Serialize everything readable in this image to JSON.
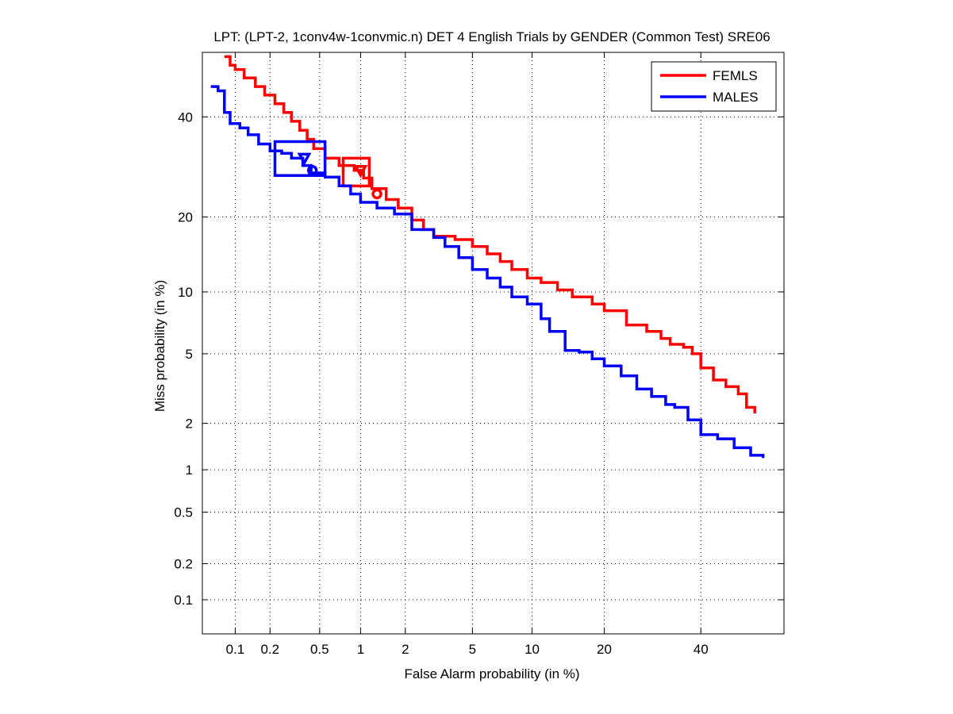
{
  "chart_data": {
    "type": "line",
    "title": "LPT: (LPT-2, 1conv4w-1convmic.n) DET 4 English Trials by GENDER (Common Test) SRE06",
    "xlabel": "False Alarm probability (in %)",
    "ylabel": "Miss probability (in %)",
    "x_scale": "normal-deviate (probit)",
    "y_scale": "normal-deviate (probit)",
    "xlim": [
      0.05,
      60
    ],
    "ylim": [
      0.05,
      55
    ],
    "x_ticks": [
      0.1,
      0.2,
      0.5,
      1,
      2,
      5,
      10,
      20,
      40
    ],
    "x_tick_labels": [
      "0.1",
      "0.2",
      "0.5",
      "1",
      "2",
      "5",
      "10",
      "20",
      "40"
    ],
    "y_ticks": [
      0.1,
      0.2,
      0.5,
      1,
      2,
      5,
      10,
      20,
      40
    ],
    "y_tick_labels": [
      "0.1",
      "0.2",
      "0.5",
      "1",
      "2",
      "5",
      "10",
      "20",
      "40"
    ],
    "grid": true,
    "legend_position": "top-right",
    "series": [
      {
        "name": "FEMLS",
        "color": "#ff0000",
        "points": [
          [
            0.08,
            54
          ],
          [
            0.09,
            52
          ],
          [
            0.1,
            51
          ],
          [
            0.12,
            49
          ],
          [
            0.15,
            47
          ],
          [
            0.18,
            45
          ],
          [
            0.22,
            43
          ],
          [
            0.26,
            41
          ],
          [
            0.3,
            39
          ],
          [
            0.35,
            37
          ],
          [
            0.4,
            35
          ],
          [
            0.45,
            33
          ],
          [
            0.55,
            31
          ],
          [
            0.7,
            29.5
          ],
          [
            0.9,
            28.5
          ],
          [
            1.05,
            27
          ],
          [
            1.2,
            25
          ],
          [
            1.5,
            23
          ],
          [
            1.8,
            21.5
          ],
          [
            2.2,
            19.5
          ],
          [
            2.6,
            18
          ],
          [
            3,
            17
          ],
          [
            4,
            16.5
          ],
          [
            5,
            15.5
          ],
          [
            6,
            14.5
          ],
          [
            7,
            13.5
          ],
          [
            8,
            12.5
          ],
          [
            9.5,
            11.5
          ],
          [
            11,
            11
          ],
          [
            13,
            10.2
          ],
          [
            15,
            9.5
          ],
          [
            18,
            8.8
          ],
          [
            20,
            8.2
          ],
          [
            24,
            7
          ],
          [
            28,
            6.5
          ],
          [
            31,
            6
          ],
          [
            33,
            5.6
          ],
          [
            36,
            5.4
          ],
          [
            38,
            5
          ],
          [
            40,
            4.2
          ],
          [
            43,
            3.6
          ],
          [
            46,
            3.3
          ],
          [
            49,
            3
          ],
          [
            51,
            2.5
          ],
          [
            53,
            2.3
          ]
        ],
        "confidence_box": {
          "x": [
            0.75,
            1.15
          ],
          "y": [
            25.5,
            31
          ]
        },
        "min_dcf_point": [
          1.0,
          28.5
        ],
        "actual_dcf_point": [
          1.3,
          24
        ]
      },
      {
        "name": "MALES",
        "color": "#0000ff",
        "points": [
          [
            0.06,
            47
          ],
          [
            0.07,
            46
          ],
          [
            0.08,
            41
          ],
          [
            0.09,
            38.5
          ],
          [
            0.11,
            37.5
          ],
          [
            0.13,
            36
          ],
          [
            0.16,
            34
          ],
          [
            0.2,
            32.5
          ],
          [
            0.25,
            32
          ],
          [
            0.3,
            31
          ],
          [
            0.37,
            29.5
          ],
          [
            0.43,
            28
          ],
          [
            0.55,
            27.2
          ],
          [
            0.7,
            25.5
          ],
          [
            0.85,
            24
          ],
          [
            1,
            22.5
          ],
          [
            1.3,
            21.5
          ],
          [
            1.7,
            20.5
          ],
          [
            2.2,
            18
          ],
          [
            3,
            16.8
          ],
          [
            3.5,
            15.5
          ],
          [
            4.2,
            14
          ],
          [
            5,
            12.5
          ],
          [
            6,
            11.5
          ],
          [
            7,
            10.5
          ],
          [
            8,
            9.5
          ],
          [
            9.5,
            8.8
          ],
          [
            11,
            7.5
          ],
          [
            12,
            6.5
          ],
          [
            14,
            5.2
          ],
          [
            16,
            5.1
          ],
          [
            18,
            4.7
          ],
          [
            20,
            4.3
          ],
          [
            23,
            3.8
          ],
          [
            26,
            3.2
          ],
          [
            29,
            2.9
          ],
          [
            32,
            2.6
          ],
          [
            34,
            2.5
          ],
          [
            37,
            2.1
          ],
          [
            40,
            1.7
          ],
          [
            44,
            1.6
          ],
          [
            48,
            1.4
          ],
          [
            52,
            1.25
          ],
          [
            55,
            1.2
          ]
        ],
        "confidence_box": {
          "x": [
            0.22,
            0.55
          ],
          "y": [
            27.5,
            34.5
          ]
        },
        "min_dcf_point": [
          0.38,
          31
        ],
        "actual_dcf_point": [
          0.44,
          28.5
        ]
      }
    ]
  }
}
